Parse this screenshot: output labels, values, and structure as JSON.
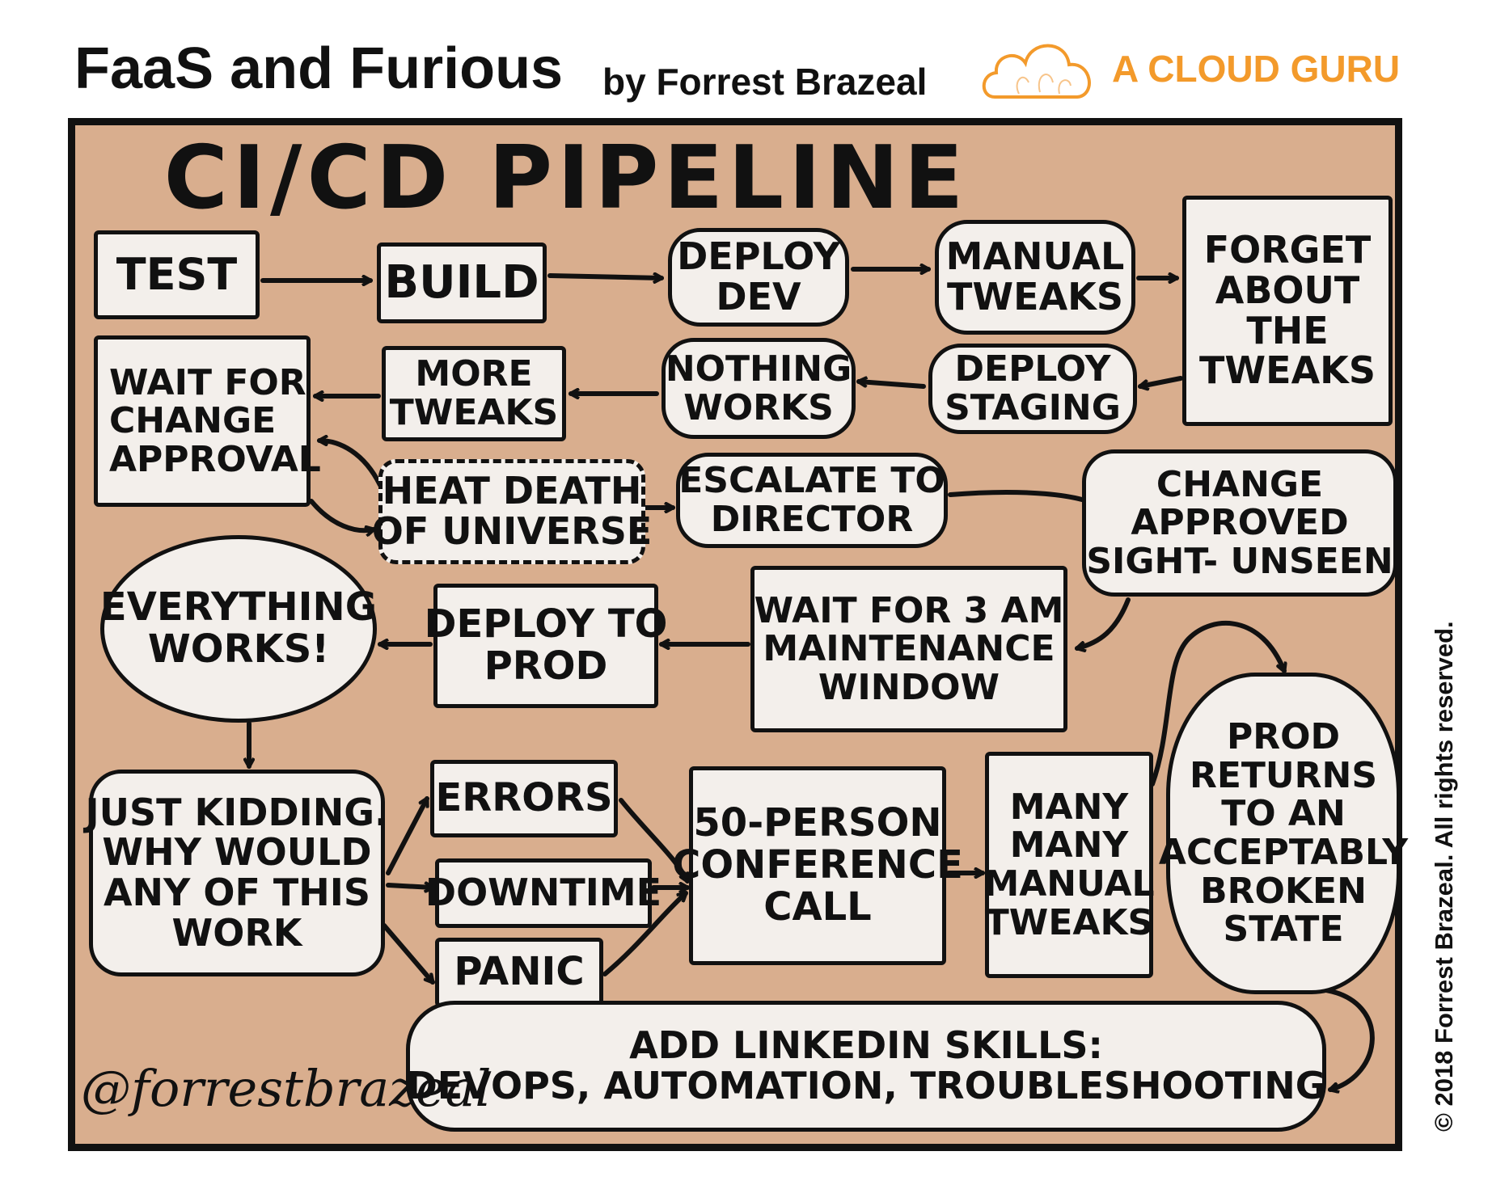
{
  "header": {
    "title": "FaaS and Furious",
    "byline": "by Forrest Brazeal",
    "logo_text": "A CLOUD GURU",
    "logo_color": "#F39A2B"
  },
  "panel": {
    "title": "CI/CD PIPELINE",
    "background": "#D9AE8E",
    "signature": "@forrestbrazeal"
  },
  "copyright": "© 2018 Forrest Brazeal. All rights reserved.",
  "nodes": {
    "test": [
      "TEST"
    ],
    "build": [
      "BUILD"
    ],
    "deploy_dev": [
      "DEPLOY",
      "DEV"
    ],
    "manual_tweaks": [
      "MANUAL",
      "TWEAKS"
    ],
    "forget_tweaks": [
      "FORGET",
      "ABOUT",
      "THE",
      "TWEAKS"
    ],
    "deploy_staging": [
      "DEPLOY",
      "STAGING"
    ],
    "nothing_works": [
      "NOTHING",
      "WORKS"
    ],
    "more_tweaks": [
      "MORE",
      "TWEAKS"
    ],
    "wait_change_approval": [
      "WAIT FOR",
      "CHANGE",
      "APPROVAL"
    ],
    "heat_death": [
      "HEAT DEATH",
      "OF UNIVERSE"
    ],
    "escalate": [
      "ESCALATE TO",
      "DIRECTOR"
    ],
    "change_approved": [
      "CHANGE",
      "APPROVED",
      "SIGHT- UNSEEN"
    ],
    "wait_3am": [
      "WAIT FOR 3 AM",
      "MAINTENANCE",
      "WINDOW"
    ],
    "deploy_prod": [
      "DEPLOY TO",
      "PROD"
    ],
    "everything_works": [
      "EVERYTHING",
      "WORKS!"
    ],
    "just_kidding": [
      "JUST KIDDING.",
      "WHY WOULD",
      "ANY OF THIS",
      "WORK"
    ],
    "errors": [
      "ERRORS"
    ],
    "downtime": [
      "DOWNTIME"
    ],
    "panic": [
      "PANIC"
    ],
    "conference_call": [
      "50-PERSON",
      "CONFERENCE",
      "CALL"
    ],
    "many_manual_tweaks": [
      "MANY",
      "MANY",
      "MANUAL",
      "TWEAKS"
    ],
    "prod_returns": [
      "PROD",
      "RETURNS",
      "TO AN",
      "ACCEPTABLY",
      "BROKEN",
      "STATE"
    ],
    "linkedin": [
      "ADD LINKEDIN SKILLS:",
      "DEVOPS, AUTOMATION, TROUBLESHOOTING"
    ]
  }
}
